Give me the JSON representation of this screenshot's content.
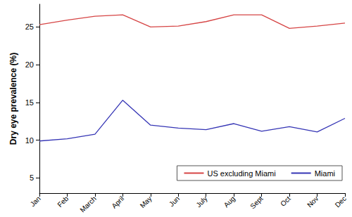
{
  "chart_data": {
    "type": "line",
    "y_label": "Dry eye prevalence (%)",
    "categories": [
      "Jan",
      "Feb",
      "March",
      "April",
      "May",
      "Jun",
      "July",
      "Aug",
      "Sept",
      "Oct",
      "Nov",
      "Dec"
    ],
    "series": [
      {
        "name": "US excluding Miami",
        "color": "#d64545",
        "values": [
          25.3,
          25.9,
          26.4,
          26.6,
          25.0,
          25.1,
          25.7,
          26.6,
          26.6,
          24.8,
          25.1,
          25.5
        ]
      },
      {
        "name": "Miami",
        "color": "#3535b5",
        "values": [
          9.9,
          10.2,
          10.8,
          15.3,
          12.0,
          11.6,
          11.4,
          12.2,
          11.2,
          11.8,
          11.1,
          12.9
        ]
      }
    ],
    "ylim": [
      3,
      28
    ],
    "yticks": [
      5,
      10,
      15,
      20,
      25
    ],
    "grid": false,
    "legend": "lower right"
  }
}
